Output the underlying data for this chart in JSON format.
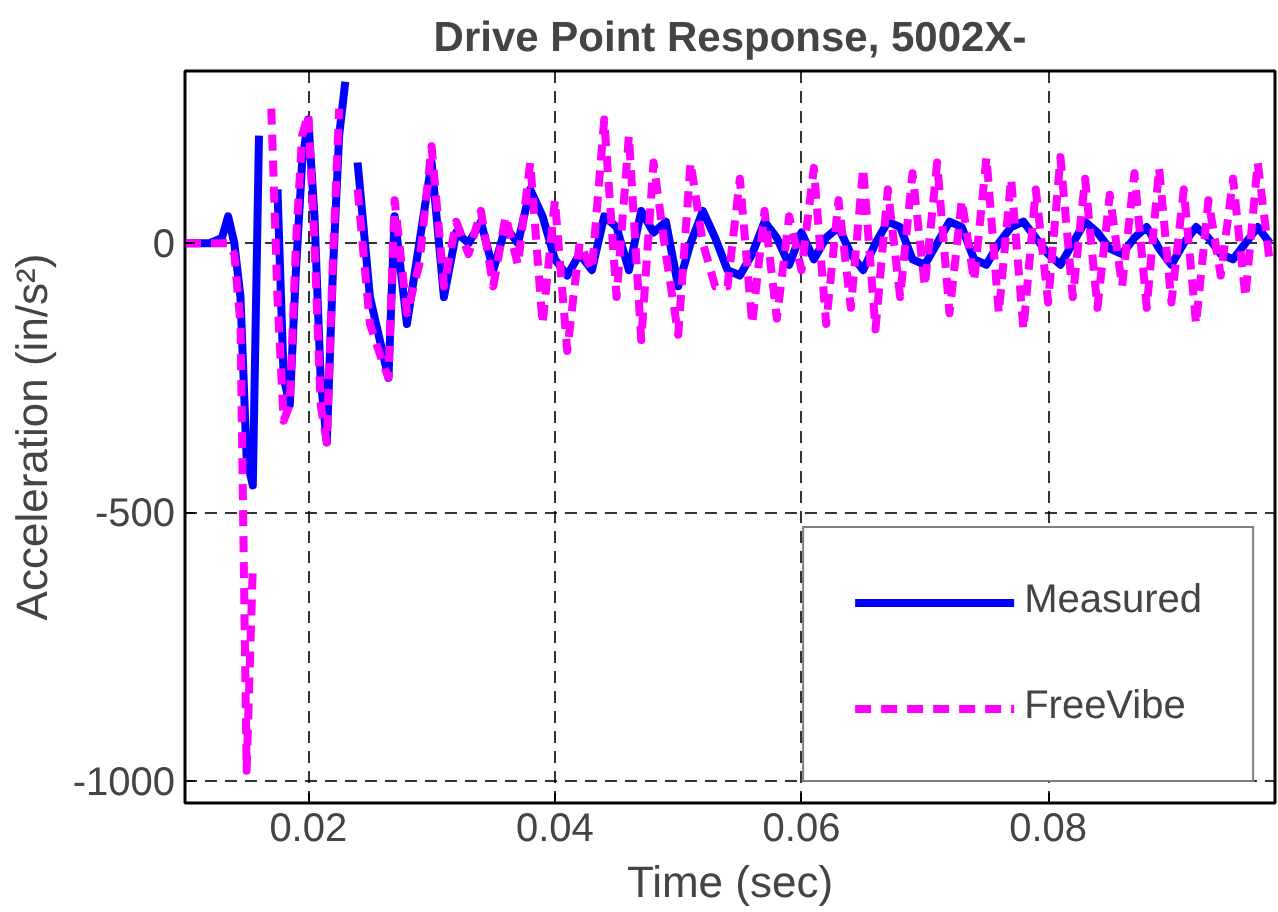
{
  "chart_data": {
    "type": "line",
    "title": "Drive Point Response, 5002X-",
    "xlabel": "Time (sec)",
    "ylabel": "Acceleration (in/s²)",
    "x": [
      0.01,
      0.011,
      0.012,
      0.013,
      0.0135,
      0.014,
      0.0145,
      0.015,
      0.0155,
      0.016,
      0.0165,
      0.017,
      0.0175,
      0.018,
      0.0185,
      0.019,
      0.0195,
      0.02,
      0.0205,
      0.021,
      0.0215,
      0.022,
      0.0225,
      0.023,
      0.0235,
      0.024,
      0.025,
      0.026,
      0.0265,
      0.027,
      0.028,
      0.029,
      0.03,
      0.031,
      0.032,
      0.033,
      0.034,
      0.035,
      0.036,
      0.037,
      0.038,
      0.039,
      0.04,
      0.041,
      0.042,
      0.043,
      0.044,
      0.045,
      0.046,
      0.047,
      0.048,
      0.049,
      0.05,
      0.051,
      0.052,
      0.053,
      0.054,
      0.055,
      0.056,
      0.057,
      0.058,
      0.059,
      0.06,
      0.061,
      0.062,
      0.063,
      0.064,
      0.065,
      0.066,
      0.067,
      0.068,
      0.069,
      0.07,
      0.071,
      0.072,
      0.073,
      0.074,
      0.075,
      0.076,
      0.077,
      0.078,
      0.079,
      0.08,
      0.081,
      0.082,
      0.083,
      0.084,
      0.085,
      0.086,
      0.087,
      0.088,
      0.089,
      0.09,
      0.091,
      0.092,
      0.093,
      0.094,
      0.095,
      0.096,
      0.097,
      0.098
    ],
    "series": [
      {
        "name": "Measured",
        "color": "#0000ff",
        "line_style": "solid",
        "values": [
          0,
          0,
          0,
          10,
          50,
          0,
          -100,
          -400,
          -450,
          200,
          null,
          null,
          100,
          -250,
          -300,
          -50,
          150,
          230,
          50,
          -250,
          -370,
          -50,
          200,
          300,
          null,
          150,
          -100,
          -200,
          -250,
          50,
          -150,
          0,
          150,
          -100,
          20,
          0,
          40,
          -50,
          30,
          0,
          100,
          50,
          -30,
          -60,
          -20,
          -50,
          50,
          30,
          -50,
          60,
          20,
          40,
          -80,
          0,
          60,
          10,
          -50,
          -60,
          -20,
          40,
          10,
          -40,
          20,
          -30,
          10,
          30,
          -20,
          -50,
          0,
          40,
          30,
          -30,
          -40,
          0,
          40,
          30,
          -30,
          -40,
          0,
          30,
          40,
          10,
          -20,
          -40,
          0,
          40,
          20,
          -10,
          -20,
          10,
          30,
          -10,
          -40,
          0,
          30,
          10,
          -20,
          -30,
          0,
          30,
          0
        ]
      },
      {
        "name": "FreeVibe",
        "color": "#ff00ff",
        "line_style": "dashed",
        "values": [
          0,
          0,
          0,
          0,
          0,
          -20,
          -150,
          -980,
          -600,
          null,
          null,
          250,
          -100,
          -330,
          -300,
          0,
          200,
          240,
          0,
          -300,
          -370,
          -30,
          250,
          null,
          null,
          100,
          -150,
          -220,
          -250,
          80,
          -130,
          -40,
          180,
          -80,
          40,
          -20,
          60,
          -80,
          50,
          -40,
          150,
          -150,
          80,
          -200,
          0,
          -50,
          230,
          -100,
          200,
          -180,
          150,
          -20,
          -170,
          150,
          0,
          -80,
          -80,
          120,
          -150,
          60,
          -140,
          50,
          -50,
          140,
          -150,
          80,
          -120,
          140,
          -160,
          100,
          -100,
          130,
          -80,
          150,
          -130,
          80,
          -70,
          160,
          -130,
          120,
          -160,
          100,
          -110,
          160,
          -100,
          120,
          -120,
          90,
          -80,
          130,
          -120,
          140,
          -110,
          100,
          -150,
          80,
          -60,
          120,
          -100,
          150,
          -40
        ]
      }
    ],
    "xlim": [
      0.01,
      0.0984
    ],
    "ylim": [
      -1040,
      320
    ],
    "xticks": [
      0.02,
      0.04,
      0.06,
      0.08
    ],
    "yticks": [
      -1000,
      -500,
      0
    ],
    "grid": true,
    "legend": "bottom right",
    "marker": "none"
  }
}
